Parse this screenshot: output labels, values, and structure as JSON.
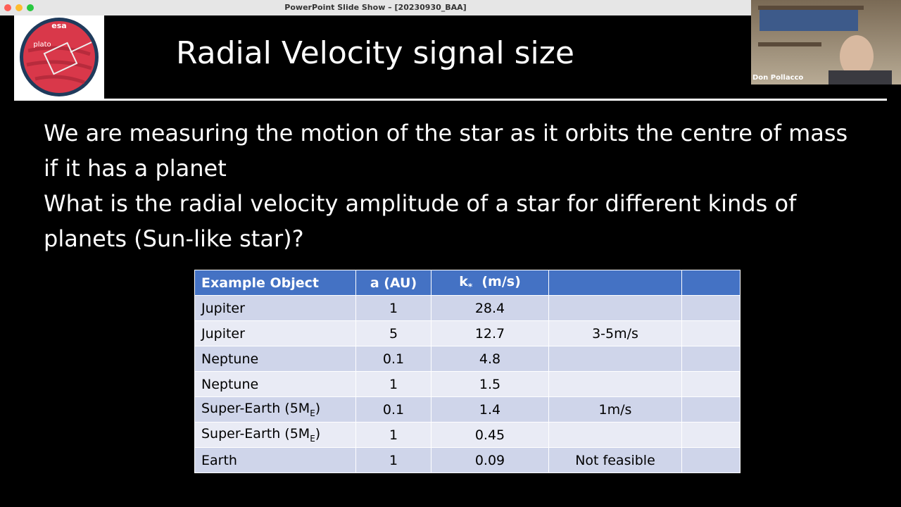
{
  "window": {
    "title": "PowerPoint Slide Show – [20230930_BAA]"
  },
  "logo": {
    "agency": "esa",
    "mission": "plato"
  },
  "slide": {
    "title": "Radial Velocity signal size",
    "paragraphs": [
      "We are measuring the motion of the star as it orbits the centre of mass if it has a planet",
      "What is the radial velocity amplitude of a star for different kinds of planets (Sun-like star)?"
    ],
    "table": {
      "header": {
        "object": "Example Object",
        "a": "a (AU)",
        "k": {
          "text": "k",
          "sub": "*",
          "tail": "  (m/s)"
        }
      },
      "rows": [
        {
          "object": "Jupiter",
          "a": 1,
          "k": 28.4
        },
        {
          "object": "Jupiter",
          "a": 5,
          "k": 12.7,
          "note": "3-5m/s"
        },
        {
          "object": "Neptune",
          "a": 0.1,
          "k": 4.8
        },
        {
          "object": "Neptune",
          "a": 1,
          "k": 1.5
        },
        {
          "object": {
            "text": "Super-Earth (5M",
            "sub": "E",
            "tail": ")"
          },
          "a": 0.1,
          "k": 1.4,
          "note": "1m/s"
        },
        {
          "object": {
            "text": "Super-Earth (5M",
            "sub": "E",
            "tail": ")"
          },
          "a": 1,
          "k": 0.45
        },
        {
          "object": "Earth",
          "a": 1,
          "k": 0.09,
          "note": "Not feasible"
        }
      ]
    }
  },
  "video": {
    "participant": "Don Pollacco"
  }
}
